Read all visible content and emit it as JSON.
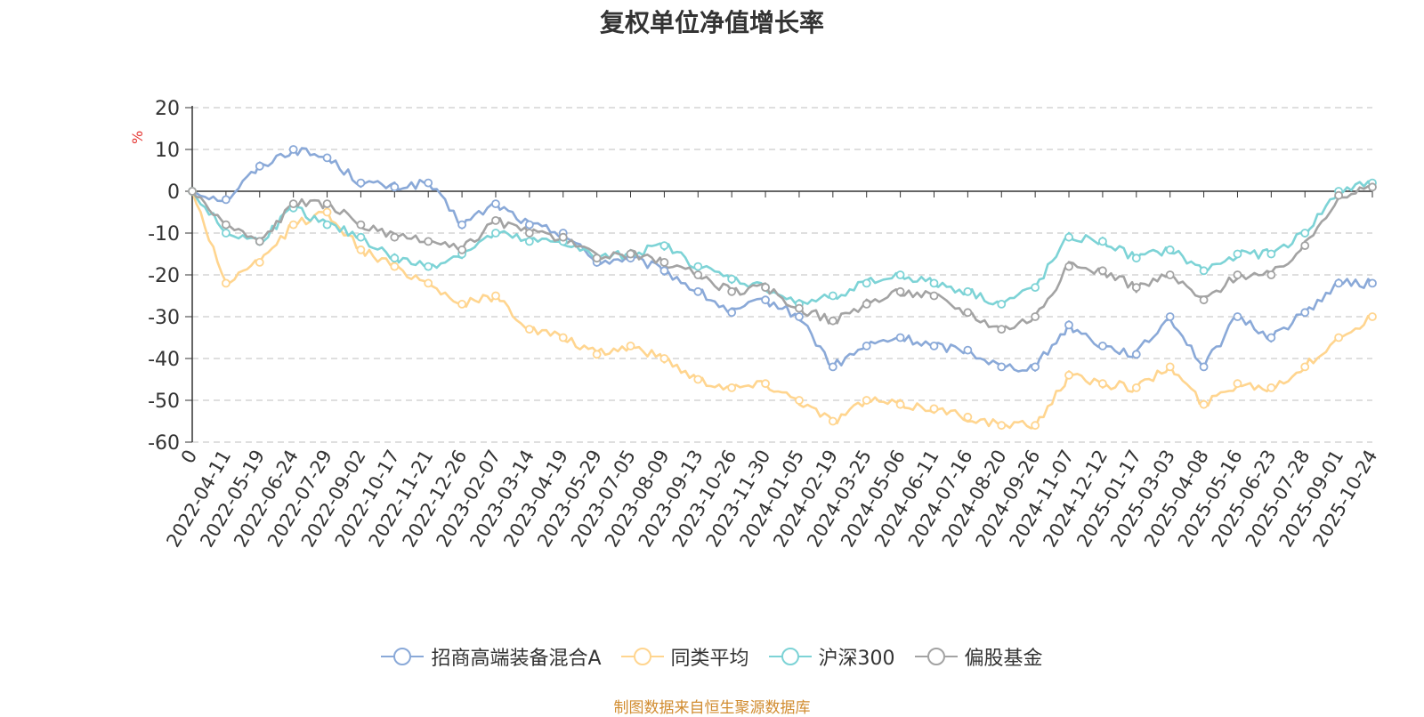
{
  "chart_data": {
    "type": "line",
    "title": "复权单位净值增长率",
    "ylabel": "%",
    "ylim": [
      -60,
      20
    ],
    "y_ticks": [
      20,
      10,
      0,
      -10,
      -20,
      -30,
      -40,
      -50,
      -60
    ],
    "x_ticks": [
      "0",
      "2022-04-11",
      "2022-05-19",
      "2022-06-24",
      "2022-07-29",
      "2022-09-02",
      "2022-10-17",
      "2022-11-21",
      "2022-12-26",
      "2023-02-07",
      "2023-03-14",
      "2023-04-19",
      "2023-05-29",
      "2023-07-05",
      "2023-08-09",
      "2023-09-13",
      "2023-10-26",
      "2023-11-30",
      "2024-01-05",
      "2024-02-19",
      "2024-03-25",
      "2024-05-06",
      "2024-06-11",
      "2024-07-16",
      "2024-08-20",
      "2024-09-26",
      "2024-11-07",
      "2024-12-12",
      "2025-01-17",
      "2025-03-03",
      "2025-04-08",
      "2025-05-16",
      "2025-06-23",
      "2025-07-28",
      "2025-09-01",
      "2025-10-24"
    ],
    "series": [
      {
        "name": "招商高端装备混合A",
        "color": "#8aa9d8",
        "values": [
          0,
          -2,
          6,
          10,
          8,
          2,
          1,
          2,
          -8,
          -3,
          -8,
          -10,
          -17,
          -16,
          -19,
          -24,
          -29,
          -26,
          -30,
          -42,
          -37,
          -35,
          -37,
          -38,
          -42,
          -42,
          -32,
          -37,
          -39,
          -30,
          -42,
          -30,
          -35,
          -29,
          -22,
          -22
        ]
      },
      {
        "name": "同类平均",
        "color": "#ffd58f",
        "values": [
          0,
          -22,
          -17,
          -8,
          -5,
          -14,
          -18,
          -22,
          -27,
          -25,
          -33,
          -35,
          -39,
          -37,
          -40,
          -45,
          -47,
          -46,
          -50,
          -55,
          -50,
          -51,
          -52,
          -54,
          -56,
          -56,
          -44,
          -46,
          -47,
          -42,
          -51,
          -46,
          -47,
          -42,
          -35,
          -30
        ]
      },
      {
        "name": "沪深300",
        "color": "#7dd3d6",
        "values": [
          0,
          -10,
          -12,
          -4,
          -8,
          -11,
          -16,
          -18,
          -15,
          -10,
          -12,
          -12,
          -16,
          -15,
          -13,
          -18,
          -21,
          -23,
          -27,
          -25,
          -22,
          -20,
          -22,
          -24,
          -27,
          -23,
          -11,
          -12,
          -16,
          -14,
          -19,
          -15,
          -15,
          -10,
          0,
          2
        ]
      },
      {
        "name": "偏股基金",
        "color": "#a3a3a3",
        "values": [
          0,
          -8,
          -12,
          -3,
          -3,
          -8,
          -11,
          -12,
          -14,
          -7,
          -10,
          -11,
          -16,
          -15,
          -17,
          -20,
          -24,
          -23,
          -28,
          -31,
          -27,
          -24,
          -25,
          -29,
          -33,
          -30,
          -18,
          -19,
          -23,
          -20,
          -26,
          -20,
          -20,
          -13,
          -1,
          1
        ]
      }
    ]
  },
  "legend_label_0": "招商高端装备混合A",
  "legend_label_1": "同类平均",
  "legend_label_2": "沪深300",
  "legend_label_3": "偏股基金",
  "source_note": "制图数据来自恒生聚源数据库"
}
